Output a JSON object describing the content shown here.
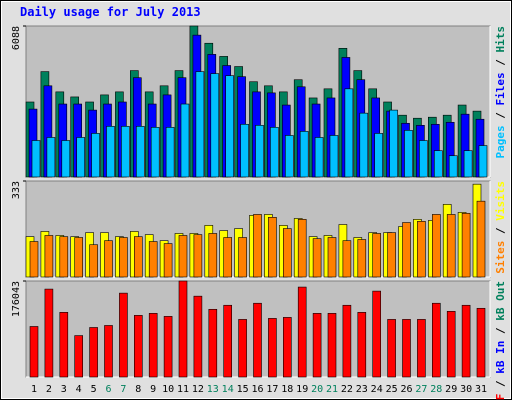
{
  "title": "Daily usage for July 2013",
  "legend_separator": " / ",
  "chart_data": [
    {
      "type": "bar",
      "ylim": [
        0,
        6088
      ],
      "yticks": [
        6088
      ],
      "series": [
        {
          "name": "Pages",
          "color": "#00c0ff",
          "values": [
            1471,
            1594,
            1471,
            1594,
            1757,
            2043,
            2043,
            2043,
            2002,
            2002,
            2942,
            4249,
            4168,
            4086,
            2125,
            2084,
            2002,
            1675,
            1839,
            1594,
            1675,
            3555,
            2574,
            1757,
            2697,
            1880,
            1471,
            1062,
            858,
            1062,
            1267
          ]
        },
        {
          "name": "Files",
          "color": "#0000ff",
          "values": [
            2738,
            3677,
            2942,
            2942,
            2697,
            2942,
            3024,
            4004,
            2942,
            3310,
            4004,
            5720,
            4944,
            4495,
            4045,
            3432,
            3391,
            2901,
            3637,
            2942,
            3187,
            4821,
            3923,
            3187,
            2656,
            2166,
            2084,
            2125,
            2206,
            2533,
            2329
          ]
        },
        {
          "name": "Hits",
          "color": "#00805c",
          "values": [
            3024,
            4249,
            3432,
            3228,
            3024,
            3310,
            3432,
            4290,
            3432,
            3677,
            4290,
            6088,
            5393,
            4862,
            4454,
            3841,
            3677,
            3432,
            3922,
            3187,
            3555,
            5189,
            4290,
            3555,
            3024,
            2492,
            2370,
            2411,
            2492,
            2901,
            2656
          ]
        }
      ]
    },
    {
      "type": "bar",
      "ylim": [
        0,
        333
      ],
      "yticks": [
        333
      ],
      "series": [
        {
          "name": "Sites",
          "color": "#ff8000",
          "values": [
            123,
            144,
            140,
            137,
            112,
            126,
            137,
            140,
            123,
            116,
            144,
            147,
            151,
            137,
            137,
            217,
            207,
            168,
            200,
            133,
            137,
            126,
            130,
            151,
            154,
            189,
            193,
            217,
            217,
            221,
            263
          ]
        },
        {
          "name": "Visits",
          "color": "#ffff00",
          "values": [
            140,
            158,
            144,
            140,
            154,
            154,
            140,
            158,
            147,
            126,
            151,
            151,
            179,
            161,
            168,
            214,
            217,
            179,
            203,
            140,
            144,
            182,
            137,
            154,
            154,
            175,
            200,
            196,
            252,
            224,
            322
          ]
        }
      ]
    },
    {
      "type": "bar",
      "ylim": [
        0,
        176043
      ],
      "yticks": [
        176043
      ],
      "series": [
        {
          "name": "kB F",
          "color": "#ff0000",
          "values": [
            92650,
            161211,
            118592,
            75973,
            90797,
            94503,
            153799,
            113033,
            116739,
            111180,
            176043,
            148240,
            124151,
            131563,
            105621,
            135269,
            107474,
            109327,
            164917,
            116739,
            116739,
            131563,
            118592,
            157505,
            105621,
            105621,
            105621,
            135269,
            120445,
            131563,
            126004
          ]
        }
      ],
      "legend_only": [
        {
          "name": "kB In",
          "color": "#0000ff"
        },
        {
          "name": "kB Out",
          "color": "#00805c"
        }
      ],
      "categories": [
        "1",
        "2",
        "3",
        "4",
        "5",
        "6",
        "7",
        "8",
        "9",
        "10",
        "11",
        "12",
        "13",
        "14",
        "15",
        "16",
        "17",
        "18",
        "19",
        "20",
        "21",
        "22",
        "23",
        "24",
        "25",
        "26",
        "27",
        "28",
        "29",
        "30",
        "31"
      ],
      "category_colors": [
        "#000000",
        "#000000",
        "#000000",
        "#000000",
        "#000000",
        "#00805c",
        "#00805c",
        "#000000",
        "#000000",
        "#000000",
        "#000000",
        "#000000",
        "#00805c",
        "#00805c",
        "#000000",
        "#000000",
        "#000000",
        "#000000",
        "#000000",
        "#00805c",
        "#00805c",
        "#000000",
        "#000000",
        "#000000",
        "#000000",
        "#000000",
        "#00805c",
        "#00805c",
        "#000000",
        "#000000",
        "#000000"
      ]
    }
  ]
}
